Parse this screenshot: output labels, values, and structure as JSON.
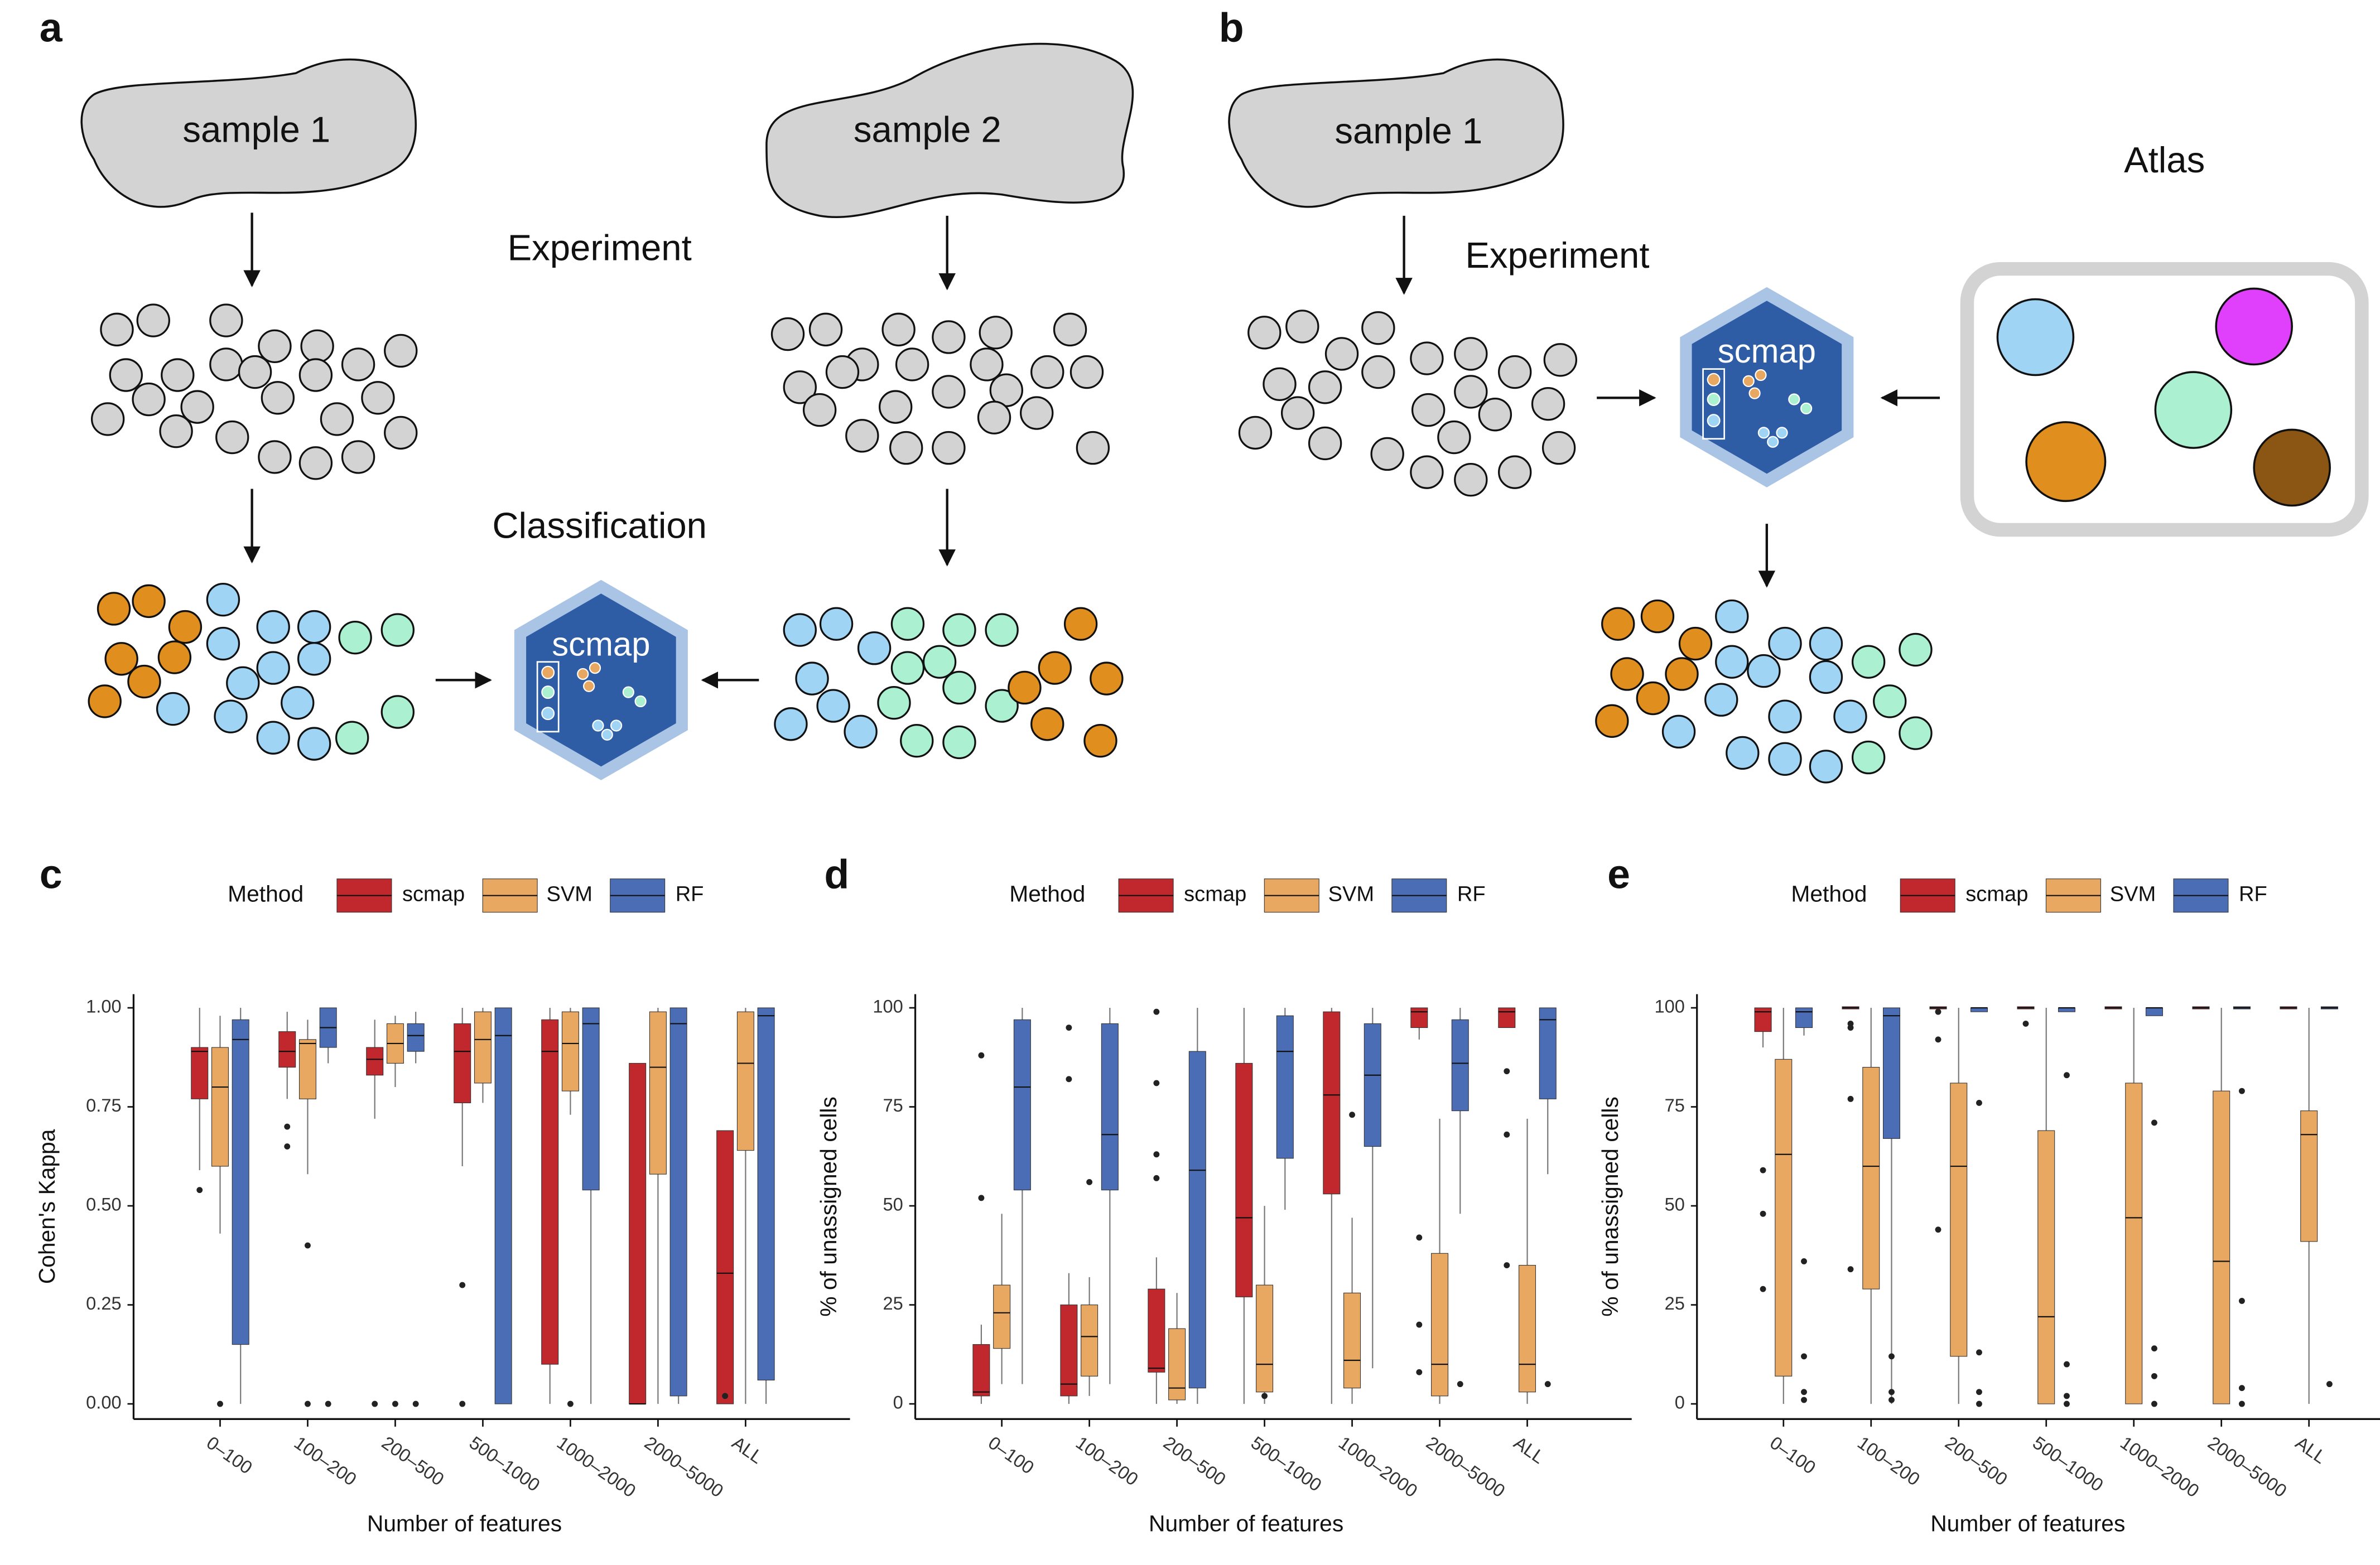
{
  "panel_labels": [
    "a",
    "b",
    "c",
    "d",
    "e"
  ],
  "diagram": {
    "a": {
      "sample_1": "sample 1",
      "sample_2": "sample 2",
      "experiment": "Experiment",
      "classification": "Classification",
      "hex_label": "scmap"
    },
    "b": {
      "sample_1": "sample 1",
      "experiment": "Experiment",
      "atlas": "Atlas",
      "hex_label": "scmap"
    }
  },
  "chart_data": [
    {
      "type": "box",
      "x_label": "Number of features",
      "y_label": "Cohen's Kappa",
      "legend_title": "Method",
      "legend": "top",
      "categories": [
        "0–100",
        "100–200",
        "200–500",
        "500–1000",
        "1000–2000",
        "2000–5000",
        "ALL"
      ],
      "ylim": [
        0,
        1
      ],
      "yticks": [
        {
          "value": 0,
          "label": "0.00"
        },
        {
          "value": 0.25,
          "label": "0.25"
        },
        {
          "value": 0.5,
          "label": "0.50"
        },
        {
          "value": 0.75,
          "label": "0.75"
        },
        {
          "value": 1,
          "label": "1.00"
        }
      ],
      "series": [
        {
          "name": "scmap",
          "color": "#c0282d",
          "min": [
            0.59,
            0.77,
            0.72,
            0.6,
            0,
            0,
            0
          ],
          "q1": [
            0.77,
            0.85,
            0.83,
            0.76,
            0.1,
            0,
            0
          ],
          "median": [
            0.89,
            0.89,
            0.87,
            0.89,
            0.89,
            0,
            0.33
          ],
          "q3": [
            0.9,
            0.94,
            0.9,
            0.96,
            0.97,
            0.86,
            0.69
          ],
          "max": [
            1,
            0.99,
            0.97,
            1,
            1,
            0.86,
            0.69
          ],
          "outliers": [
            [
              0.54
            ],
            [
              0.7,
              0.65
            ],
            [
              0
            ],
            [
              0.3,
              0
            ],
            [],
            [],
            [
              0.02
            ]
          ]
        },
        {
          "name": "SVM",
          "color": "#e8a861",
          "min": [
            0.43,
            0.58,
            0.8,
            0.76,
            0.73,
            0,
            0
          ],
          "q1": [
            0.6,
            0.77,
            0.86,
            0.81,
            0.79,
            0.58,
            0.64
          ],
          "median": [
            0.8,
            0.91,
            0.91,
            0.92,
            0.91,
            0.85,
            0.86
          ],
          "q3": [
            0.9,
            0.92,
            0.96,
            0.99,
            0.99,
            0.99,
            0.99
          ],
          "max": [
            0.98,
            0.97,
            0.98,
            1,
            1,
            1,
            1
          ],
          "outliers": [
            [
              0
            ],
            [
              0.4,
              0
            ],
            [
              0
            ],
            [],
            [
              0
            ],
            [],
            []
          ]
        },
        {
          "name": "RF",
          "color": "#4a6db5",
          "min": [
            0,
            0.86,
            0.86,
            0,
            0,
            0,
            0
          ],
          "q1": [
            0.15,
            0.9,
            0.89,
            0,
            0.54,
            0.02,
            0.06
          ],
          "median": [
            0.92,
            0.95,
            0.93,
            0.93,
            0.96,
            0.96,
            0.98
          ],
          "q3": [
            0.97,
            1,
            0.96,
            1,
            1,
            1,
            1
          ],
          "max": [
            1,
            1,
            0.99,
            1,
            1,
            1,
            1
          ],
          "outliers": [
            [],
            [
              0
            ],
            [
              0
            ],
            [],
            [],
            [],
            []
          ]
        }
      ]
    },
    {
      "type": "box",
      "x_label": "Number of features",
      "y_label": "% of unassigned cells",
      "legend_title": "Method",
      "legend": "top",
      "categories": [
        "0–100",
        "100–200",
        "200–500",
        "500–1000",
        "1000–2000",
        "2000–5000",
        "ALL"
      ],
      "ylim": [
        0,
        100
      ],
      "yticks": [
        0,
        25,
        50,
        75,
        100
      ],
      "series": [
        {
          "name": "scmap",
          "color": "#c0282d",
          "min": [
            0,
            0,
            0,
            0,
            0,
            92,
            95
          ],
          "q1": [
            2,
            2,
            8,
            27,
            53,
            95,
            95
          ],
          "median": [
            3,
            5,
            9,
            47,
            78,
            99,
            99
          ],
          "q3": [
            15,
            25,
            29,
            86,
            99,
            100,
            100
          ],
          "max": [
            20,
            33,
            37,
            100,
            100,
            100,
            100
          ],
          "outliers": [
            [
              88,
              52
            ],
            [
              95,
              82
            ],
            [
              99,
              81,
              63,
              57
            ],
            [],
            [],
            [
              42,
              20,
              8
            ],
            [
              84,
              68,
              35
            ]
          ]
        },
        {
          "name": "SVM",
          "color": "#e8a861",
          "min": [
            5,
            2,
            0,
            0,
            0,
            0,
            0
          ],
          "q1": [
            14,
            7,
            1,
            3,
            4,
            2,
            3
          ],
          "median": [
            23,
            17,
            4,
            10,
            11,
            10,
            10
          ],
          "q3": [
            30,
            25,
            19,
            30,
            28,
            38,
            35
          ],
          "max": [
            48,
            32,
            28,
            50,
            47,
            72,
            72
          ],
          "outliers": [
            [],
            [
              56
            ],
            [],
            [
              2
            ],
            [
              73
            ],
            [],
            []
          ]
        },
        {
          "name": "RF",
          "color": "#4a6db5",
          "min": [
            5,
            5,
            0,
            49,
            9,
            48,
            58
          ],
          "q1": [
            54,
            54,
            4,
            62,
            65,
            74,
            77
          ],
          "median": [
            80,
            68,
            59,
            89,
            83,
            86,
            97
          ],
          "q3": [
            97,
            96,
            89,
            98,
            96,
            97,
            100
          ],
          "max": [
            100,
            100,
            100,
            100,
            100,
            100,
            100
          ],
          "outliers": [
            [],
            [],
            [],
            [],
            [],
            [
              5
            ],
            [
              5
            ]
          ]
        }
      ]
    },
    {
      "type": "box",
      "x_label": "Number of features",
      "y_label": "% of unassigned cells",
      "legend_title": "Method",
      "legend": "top",
      "categories": [
        "0–100",
        "100–200",
        "200–500",
        "500–1000",
        "1000–2000",
        "2000–5000",
        "ALL"
      ],
      "ylim": [
        0,
        100
      ],
      "yticks": [
        0,
        25,
        50,
        75,
        100
      ],
      "series": [
        {
          "name": "scmap",
          "color": "#c0282d",
          "min": [
            90,
            100,
            100,
            100,
            100,
            100,
            100
          ],
          "q1": [
            94,
            100,
            100,
            100,
            100,
            100,
            100
          ],
          "median": [
            99,
            100,
            100,
            100,
            100,
            100,
            100
          ],
          "q3": [
            100,
            100,
            100,
            100,
            100,
            100,
            100
          ],
          "max": [
            100,
            100,
            100,
            100,
            100,
            100,
            100
          ],
          "outliers": [
            [
              59,
              48,
              29
            ],
            [
              96,
              95,
              77,
              34
            ],
            [
              99,
              92,
              44
            ],
            [
              96
            ],
            [],
            [],
            []
          ]
        },
        {
          "name": "SVM",
          "color": "#e8a861",
          "min": [
            0,
            0,
            0,
            0,
            0,
            0,
            0
          ],
          "q1": [
            7,
            29,
            12,
            0,
            0,
            0,
            41
          ],
          "median": [
            63,
            60,
            60,
            22,
            47,
            36,
            68
          ],
          "q3": [
            87,
            85,
            81,
            69,
            81,
            79,
            74
          ],
          "max": [
            100,
            100,
            100,
            100,
            100,
            100,
            100
          ],
          "outliers": [
            [],
            [],
            [],
            [],
            [],
            [],
            []
          ]
        },
        {
          "name": "RF",
          "color": "#4a6db5",
          "min": [
            93,
            0,
            99,
            99,
            98,
            100,
            100
          ],
          "q1": [
            95,
            67,
            99,
            99,
            98,
            100,
            100
          ],
          "median": [
            99,
            98,
            100,
            100,
            100,
            100,
            100
          ],
          "q3": [
            100,
            100,
            100,
            100,
            100,
            100,
            100
          ],
          "max": [
            100,
            100,
            100,
            100,
            100,
            100,
            100
          ],
          "outliers": [
            [
              36,
              12,
              3,
              1
            ],
            [
              12,
              3,
              1
            ],
            [
              76,
              13,
              3,
              0
            ],
            [
              83,
              10,
              2,
              0
            ],
            [
              71,
              14,
              7,
              0
            ],
            [
              79,
              26,
              4,
              0
            ],
            [
              5
            ]
          ]
        }
      ]
    }
  ]
}
